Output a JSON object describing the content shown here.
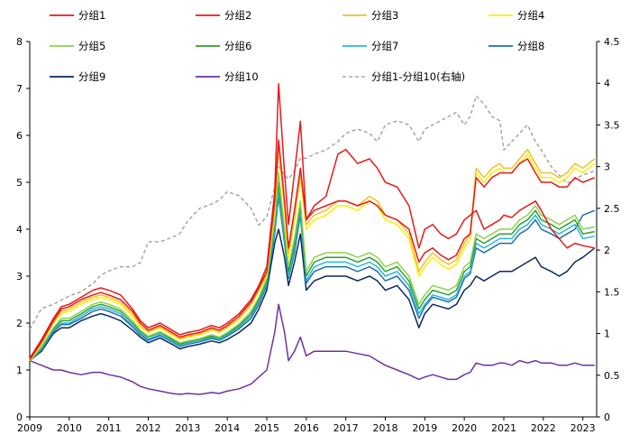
{
  "chart_data": {
    "type": "line",
    "x_range": [
      2009,
      2023.35
    ],
    "x_ticks": [
      "2009",
      "2010",
      "2011",
      "2012",
      "2013",
      "2014",
      "2015",
      "2016",
      "2017",
      "2018",
      "2019",
      "2020",
      "2021",
      "2022",
      "2023"
    ],
    "left_axis": {
      "ylim": [
        0,
        8
      ],
      "ticks": [
        "0",
        "1",
        "2",
        "3",
        "4",
        "5",
        "6",
        "7",
        "8"
      ]
    },
    "right_axis": {
      "ylim": [
        0,
        4.5
      ],
      "ticks": [
        "0",
        "0.5",
        "1",
        "1.5",
        "2",
        "2.5",
        "3",
        "3.5",
        "4",
        "4.5"
      ]
    },
    "base_x": [
      2009.0,
      2009.3,
      2009.6,
      2009.8,
      2010.0,
      2010.3,
      2010.6,
      2010.8,
      2011.0,
      2011.3,
      2011.6,
      2011.8,
      2012.0,
      2012.3,
      2012.6,
      2012.8,
      2013.0,
      2013.3,
      2013.6,
      2013.8,
      2014.0,
      2014.3,
      2014.6,
      2014.8,
      2015.0,
      2015.2,
      2015.3,
      2015.45,
      2015.55,
      2015.7,
      2015.85,
      2016.0,
      2016.2,
      2016.5,
      2016.8,
      2017.0,
      2017.3,
      2017.6,
      2017.8,
      2018.0,
      2018.3,
      2018.6,
      2018.85,
      2019.0,
      2019.2,
      2019.4,
      2019.6,
      2019.8,
      2020.0,
      2020.15,
      2020.3,
      2020.5,
      2020.7,
      2020.9,
      2021.0,
      2021.2,
      2021.4,
      2021.6,
      2021.8,
      2021.95,
      2022.2,
      2022.4,
      2022.6,
      2022.8,
      2023.0,
      2023.3
    ],
    "base_y": [
      1.2,
      1.5,
      1.9,
      2.1,
      2.1,
      2.25,
      2.45,
      2.5,
      2.45,
      2.35,
      2.1,
      1.9,
      1.75,
      1.85,
      1.7,
      1.6,
      1.65,
      1.7,
      1.75,
      1.7,
      1.8,
      1.95,
      2.2,
      2.5,
      3.0,
      4.3,
      5.3,
      3.9,
      3.1,
      3.7,
      4.5,
      2.9,
      3.3,
      3.4,
      3.5,
      3.6,
      3.6,
      3.75,
      3.6,
      3.4,
      3.5,
      3.2,
      2.5,
      2.7,
      2.9,
      2.85,
      2.8,
      2.9,
      3.3,
      3.3,
      3.8,
      4.4,
      4.2,
      4.5,
      4.5,
      4.4,
      4.5,
      4.55,
      4.7,
      4.6,
      4.4,
      4.2,
      4.3,
      4.6,
      4.5,
      4.4
    ],
    "series": [
      {
        "name": "分组1",
        "color": "#e41a1c",
        "dash": "",
        "axis": "left",
        "values": [
          1.25,
          1.65,
          2.1,
          2.35,
          2.4,
          2.55,
          2.7,
          2.75,
          2.7,
          2.6,
          2.3,
          2.05,
          1.9,
          2.0,
          1.85,
          1.75,
          1.8,
          1.85,
          1.95,
          1.9,
          2.0,
          2.2,
          2.5,
          2.8,
          3.2,
          4.8,
          7.1,
          5.2,
          4.1,
          5.2,
          6.3,
          4.2,
          4.5,
          4.7,
          5.6,
          5.7,
          5.4,
          5.5,
          5.3,
          5.0,
          4.9,
          4.5,
          3.6,
          4.0,
          4.1,
          3.9,
          3.8,
          3.9,
          4.2,
          4.3,
          4.4,
          4.0,
          4.1,
          4.2,
          4.3,
          4.25,
          4.4,
          4.5,
          4.6,
          4.4,
          4.0,
          3.8,
          3.6,
          3.7,
          3.65,
          3.6
        ]
      },
      {
        "name": "分组2",
        "color": "#e41a1c",
        "dash": "",
        "axis": "left",
        "values": [
          1.22,
          1.6,
          2.05,
          2.3,
          2.35,
          2.5,
          2.6,
          2.65,
          2.6,
          2.5,
          2.25,
          2.0,
          1.85,
          1.95,
          1.8,
          1.7,
          1.75,
          1.8,
          1.9,
          1.85,
          1.95,
          2.15,
          2.45,
          2.75,
          3.1,
          4.6,
          5.9,
          4.6,
          3.6,
          4.4,
          5.3,
          4.2,
          4.4,
          4.5,
          4.6,
          4.6,
          4.5,
          4.6,
          4.5,
          4.3,
          4.2,
          4.0,
          3.3,
          3.5,
          3.6,
          3.45,
          3.35,
          3.45,
          3.8,
          3.9,
          5.1,
          4.9,
          5.1,
          5.2,
          5.2,
          5.2,
          5.4,
          5.5,
          5.2,
          5.0,
          5.0,
          4.9,
          4.9,
          5.1,
          5.0,
          5.1
        ]
      },
      {
        "name": "分组3",
        "color": "#f2c12e",
        "dash": "",
        "axis": "left",
        "values": [
          1.22,
          1.58,
          2.02,
          2.25,
          2.3,
          2.45,
          2.55,
          2.6,
          2.55,
          2.45,
          2.2,
          1.95,
          1.82,
          1.92,
          1.77,
          1.67,
          1.72,
          1.77,
          1.87,
          1.82,
          1.92,
          2.1,
          2.4,
          2.7,
          3.05,
          4.5,
          5.8,
          4.5,
          3.5,
          4.3,
          5.2,
          4.1,
          4.3,
          4.4,
          4.6,
          4.6,
          4.5,
          4.7,
          4.6,
          4.3,
          4.2,
          3.9,
          3.1,
          3.3,
          3.5,
          3.35,
          3.25,
          3.35,
          3.7,
          3.9,
          5.3,
          5.1,
          5.3,
          5.4,
          5.3,
          5.3,
          5.5,
          5.7,
          5.4,
          5.2,
          5.2,
          5.1,
          5.2,
          5.4,
          5.3,
          5.5
        ]
      },
      {
        "name": "分组4",
        "color": "#ffee00",
        "dash": "",
        "axis": "left",
        "values": [
          1.2,
          1.55,
          2.0,
          2.2,
          2.25,
          2.4,
          2.5,
          2.55,
          2.5,
          2.4,
          2.15,
          1.92,
          1.8,
          1.9,
          1.75,
          1.65,
          1.7,
          1.75,
          1.85,
          1.8,
          1.9,
          2.08,
          2.38,
          2.68,
          3.0,
          4.4,
          5.7,
          4.4,
          3.4,
          4.2,
          5.1,
          4.0,
          4.2,
          4.3,
          4.5,
          4.5,
          4.4,
          4.6,
          4.5,
          4.2,
          4.1,
          3.8,
          3.0,
          3.2,
          3.4,
          3.25,
          3.15,
          3.25,
          3.6,
          3.8,
          5.2,
          5.0,
          5.2,
          5.3,
          5.2,
          5.2,
          5.4,
          5.6,
          5.3,
          5.1,
          5.1,
          5.0,
          5.1,
          5.3,
          5.2,
          5.4
        ]
      },
      {
        "name": "分组5",
        "color": "#8fd14f",
        "dash": "",
        "axis": "left",
        "values": [
          1.2,
          1.5,
          1.9,
          2.1,
          2.1,
          2.25,
          2.4,
          2.45,
          2.4,
          2.3,
          2.05,
          1.85,
          1.72,
          1.82,
          1.68,
          1.58,
          1.62,
          1.67,
          1.75,
          1.7,
          1.8,
          1.98,
          2.25,
          2.55,
          2.95,
          4.2,
          5.2,
          4.0,
          3.2,
          3.8,
          4.6,
          3.1,
          3.4,
          3.5,
          3.5,
          3.5,
          3.4,
          3.5,
          3.4,
          3.2,
          3.3,
          3.0,
          2.4,
          2.6,
          2.8,
          2.75,
          2.7,
          2.8,
          3.2,
          3.3,
          3.9,
          3.8,
          3.9,
          4.0,
          4.0,
          4.0,
          4.2,
          4.3,
          4.5,
          4.3,
          4.2,
          4.1,
          4.2,
          4.3,
          4.0,
          4.05
        ]
      },
      {
        "name": "分组6",
        "color": "#2ca02c",
        "dash": "",
        "axis": "left",
        "values": [
          1.2,
          1.48,
          1.88,
          2.05,
          2.05,
          2.2,
          2.35,
          2.4,
          2.35,
          2.25,
          2.0,
          1.82,
          1.7,
          1.8,
          1.65,
          1.55,
          1.6,
          1.65,
          1.72,
          1.68,
          1.78,
          1.95,
          2.2,
          2.5,
          2.9,
          4.1,
          5.0,
          3.9,
          3.1,
          3.7,
          4.5,
          3.0,
          3.3,
          3.4,
          3.4,
          3.4,
          3.3,
          3.4,
          3.3,
          3.1,
          3.2,
          2.9,
          2.3,
          2.5,
          2.7,
          2.65,
          2.6,
          2.7,
          3.1,
          3.2,
          3.8,
          3.7,
          3.8,
          3.9,
          3.9,
          3.9,
          4.1,
          4.2,
          4.4,
          4.2,
          4.1,
          4.0,
          4.1,
          4.2,
          3.9,
          3.95
        ]
      },
      {
        "name": "分组7",
        "color": "#29b6e6",
        "dash": "",
        "axis": "left",
        "values": [
          1.2,
          1.45,
          1.85,
          2.0,
          2.0,
          2.15,
          2.3,
          2.35,
          2.3,
          2.2,
          1.95,
          1.78,
          1.66,
          1.76,
          1.62,
          1.52,
          1.57,
          1.62,
          1.7,
          1.65,
          1.75,
          1.92,
          2.15,
          2.45,
          2.85,
          4.0,
          4.8,
          3.8,
          3.0,
          3.6,
          4.4,
          2.9,
          3.2,
          3.3,
          3.3,
          3.3,
          3.2,
          3.3,
          3.2,
          3.0,
          3.1,
          2.8,
          2.2,
          2.4,
          2.6,
          2.55,
          2.5,
          2.6,
          3.0,
          3.1,
          3.7,
          3.6,
          3.7,
          3.8,
          3.8,
          3.8,
          4.0,
          4.1,
          4.3,
          4.1,
          4.0,
          3.9,
          4.0,
          4.1,
          3.8,
          3.85
        ]
      },
      {
        "name": "分组8",
        "color": "#1f6fa8",
        "dash": "",
        "axis": "left",
        "values": [
          1.2,
          1.43,
          1.82,
          1.97,
          1.97,
          2.1,
          2.25,
          2.3,
          2.25,
          2.15,
          1.92,
          1.75,
          1.63,
          1.73,
          1.6,
          1.5,
          1.55,
          1.6,
          1.67,
          1.63,
          1.72,
          1.88,
          2.1,
          2.4,
          2.8,
          3.9,
          4.7,
          3.7,
          2.95,
          3.5,
          4.3,
          2.85,
          3.1,
          3.2,
          3.2,
          3.2,
          3.1,
          3.2,
          3.1,
          2.9,
          3.0,
          2.7,
          2.1,
          2.35,
          2.55,
          2.5,
          2.45,
          2.55,
          2.95,
          3.05,
          3.6,
          3.5,
          3.6,
          3.7,
          3.7,
          3.7,
          3.9,
          4.0,
          4.2,
          4.0,
          3.9,
          3.8,
          3.9,
          4.0,
          4.3,
          4.4
        ]
      },
      {
        "name": "分组9",
        "color": "#0b2a63",
        "dash": "",
        "axis": "left",
        "values": [
          1.2,
          1.4,
          1.78,
          1.9,
          1.9,
          2.05,
          2.15,
          2.2,
          2.15,
          2.05,
          1.85,
          1.7,
          1.58,
          1.68,
          1.55,
          1.45,
          1.5,
          1.55,
          1.62,
          1.58,
          1.65,
          1.8,
          2.0,
          2.3,
          2.7,
          3.7,
          4.0,
          3.4,
          2.8,
          3.3,
          3.9,
          2.7,
          2.9,
          3.0,
          3.0,
          3.0,
          2.9,
          3.0,
          2.9,
          2.7,
          2.8,
          2.5,
          1.9,
          2.2,
          2.4,
          2.35,
          2.3,
          2.4,
          2.7,
          2.8,
          3.0,
          2.9,
          3.0,
          3.1,
          3.1,
          3.1,
          3.2,
          3.3,
          3.4,
          3.2,
          3.1,
          3.0,
          3.1,
          3.3,
          3.4,
          3.6
        ]
      },
      {
        "name": "分组10",
        "color": "#7030a0",
        "dash": "",
        "axis": "left",
        "values": [
          1.2,
          1.1,
          1.0,
          1.0,
          0.95,
          0.9,
          0.95,
          0.95,
          0.9,
          0.85,
          0.75,
          0.65,
          0.6,
          0.55,
          0.5,
          0.48,
          0.5,
          0.48,
          0.52,
          0.5,
          0.55,
          0.6,
          0.7,
          0.85,
          1.0,
          1.8,
          2.4,
          1.8,
          1.2,
          1.4,
          1.7,
          1.3,
          1.4,
          1.4,
          1.4,
          1.4,
          1.35,
          1.3,
          1.2,
          1.1,
          1.0,
          0.9,
          0.8,
          0.85,
          0.9,
          0.85,
          0.8,
          0.8,
          0.9,
          0.95,
          1.15,
          1.1,
          1.1,
          1.15,
          1.15,
          1.1,
          1.2,
          1.15,
          1.2,
          1.15,
          1.15,
          1.1,
          1.1,
          1.15,
          1.1,
          1.1
        ]
      },
      {
        "name": "分组1-分组10(右轴)",
        "color": "#999999",
        "dash": "4,3",
        "axis": "right",
        "values": [
          1.05,
          1.3,
          1.35,
          1.4,
          1.45,
          1.5,
          1.6,
          1.7,
          1.75,
          1.8,
          1.8,
          1.85,
          2.1,
          2.1,
          2.15,
          2.2,
          2.35,
          2.5,
          2.55,
          2.6,
          2.7,
          2.65,
          2.5,
          2.3,
          2.4,
          2.75,
          3.0,
          2.9,
          2.85,
          2.95,
          3.1,
          3.1,
          3.15,
          3.2,
          3.3,
          3.4,
          3.45,
          3.4,
          3.3,
          3.5,
          3.55,
          3.5,
          3.3,
          3.45,
          3.5,
          3.55,
          3.6,
          3.65,
          3.5,
          3.6,
          3.85,
          3.75,
          3.6,
          3.55,
          3.2,
          3.3,
          3.4,
          3.5,
          3.3,
          3.2,
          3.0,
          2.9,
          2.8,
          2.85,
          2.9,
          2.95
        ]
      }
    ]
  }
}
